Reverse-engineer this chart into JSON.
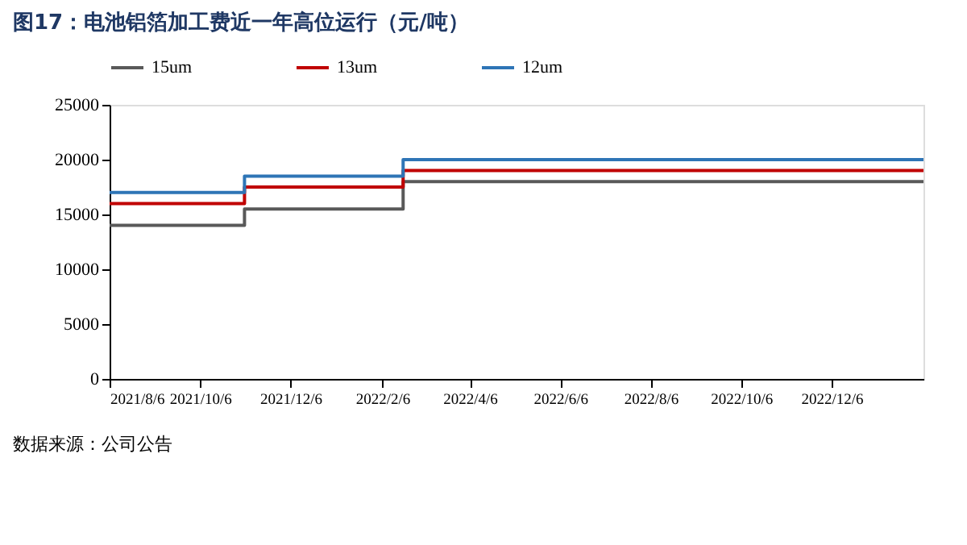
{
  "chart_data": {
    "type": "step",
    "title": "图17：电池铝箔加工费近一年高位运行（元/吨）",
    "x": [
      "2021-08-06",
      "2021-11-05",
      "2022-02-20",
      "2023-02-06"
    ],
    "series": [
      {
        "name": "15um",
        "color": "#595959",
        "values": [
          14000,
          15500,
          18000,
          18000
        ]
      },
      {
        "name": "13um",
        "color": "#c00000",
        "values": [
          16000,
          17500,
          19000,
          19000
        ]
      },
      {
        "name": "12um",
        "color": "#2e75b6",
        "values": [
          17000,
          18500,
          20000,
          20000
        ]
      }
    ],
    "xlim": [
      "2021-08-06",
      "2023-02-06"
    ],
    "xticks": [
      {
        "value": "2021-08-06",
        "label": "2021/8/6"
      },
      {
        "value": "2021-10-06",
        "label": "2021/10/6"
      },
      {
        "value": "2021-12-06",
        "label": "2021/12/6"
      },
      {
        "value": "2022-02-06",
        "label": "2022/2/6"
      },
      {
        "value": "2022-04-06",
        "label": "2022/4/6"
      },
      {
        "value": "2022-06-06",
        "label": "2022/6/6"
      },
      {
        "value": "2022-08-06",
        "label": "2022/8/6"
      },
      {
        "value": "2022-10-06",
        "label": "2022/10/6"
      },
      {
        "value": "2022-12-06",
        "label": "2022/12/6"
      }
    ],
    "ylim": [
      0,
      25000
    ],
    "yticks": [
      0,
      5000,
      10000,
      15000,
      20000,
      25000
    ],
    "grid": false,
    "legend": "top",
    "annotations": [
      "数据来源：公司公告"
    ]
  }
}
